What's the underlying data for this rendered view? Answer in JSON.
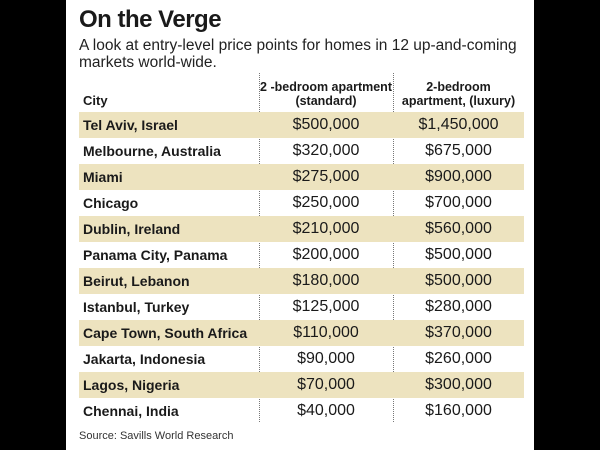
{
  "chart_data": {
    "type": "table",
    "title": "On the Verge",
    "subtitle": "A look at entry-level price points for homes in 12 up-and-coming markets world-wide.",
    "columns": [
      "City",
      "2 -bedroom apartment (standard)",
      "2-bedroom apartment, (luxury)"
    ],
    "rows": [
      [
        "Tel Aviv, Israel",
        "$500,000",
        "$1,450,000"
      ],
      [
        "Melbourne, Australia",
        "$320,000",
        "$675,000"
      ],
      [
        "Miami",
        "$275,000",
        "$900,000"
      ],
      [
        "Chicago",
        "$250,000",
        "$700,000"
      ],
      [
        "Dublin, Ireland",
        "$210,000",
        "$560,000"
      ],
      [
        "Panama City, Panama",
        "$200,000",
        "$500,000"
      ],
      [
        "Beirut, Lebanon",
        "$180,000",
        "$500,000"
      ],
      [
        "Istanbul, Turkey",
        "$125,000",
        "$280,000"
      ],
      [
        "Cape Town, South Africa",
        "$110,000",
        "$370,000"
      ],
      [
        "Jakarta, Indonesia",
        "$90,000",
        "$260,000"
      ],
      [
        "Lagos, Nigeria",
        "$70,000",
        "$300,000"
      ],
      [
        "Chennai, India",
        "$40,000",
        "$160,000"
      ]
    ],
    "source": "Source: Savills World Research"
  },
  "colors": {
    "shaded_row": "#ede3bf",
    "background": "#ffffff",
    "frame": "#000000"
  }
}
